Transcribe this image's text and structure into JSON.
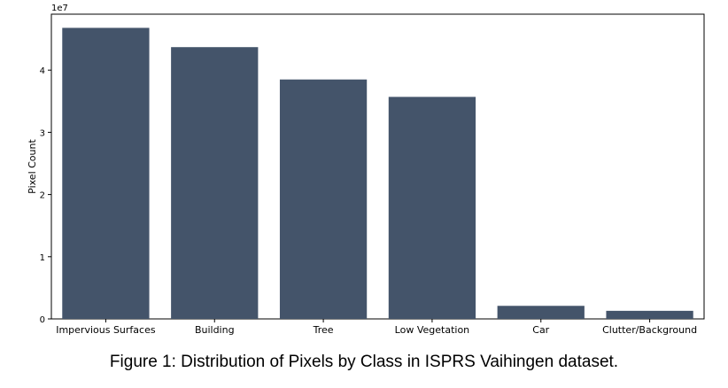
{
  "caption": "Figure 1: Distribution of Pixels by Class in ISPRS Vaihingen dataset.",
  "chart_data": {
    "type": "bar",
    "categories": [
      "Impervious Surfaces",
      "Building",
      "Tree",
      "Low Vegetation",
      "Car",
      "Clutter/Background"
    ],
    "values": [
      46800000,
      43700000,
      38500000,
      35700000,
      2100000,
      1300000
    ],
    "title": "",
    "xlabel": "",
    "ylabel": "Pixel Count",
    "ylim": [
      0,
      49000000
    ],
    "yticks": [
      0,
      10000000,
      20000000,
      30000000,
      40000000
    ],
    "ytick_labels": [
      "0",
      "1",
      "2",
      "3",
      "4"
    ],
    "offset_label": "1e7",
    "grid": false,
    "legend": "none",
    "bar_color": "#44546a"
  }
}
